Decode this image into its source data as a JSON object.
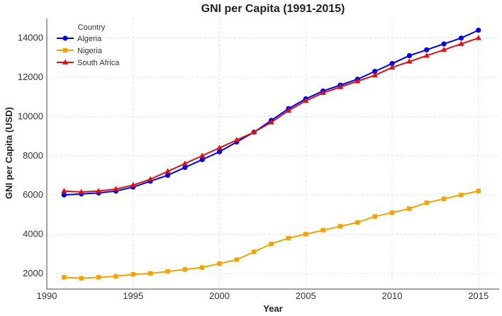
{
  "chart_data": {
    "type": "line",
    "title": "GNI per Capita (1991-2015)",
    "xlabel": "Year",
    "ylabel": "GNI per Capita (USD)",
    "xlim": [
      1990,
      2016.2
    ],
    "ylim": [
      1200,
      15000
    ],
    "xticks": [
      1990,
      1995,
      2000,
      2005,
      2010,
      2015
    ],
    "yticks": [
      2000,
      4000,
      6000,
      8000,
      10000,
      12000,
      14000
    ],
    "grid": true,
    "legend": {
      "title": "Country",
      "position": "top-left"
    },
    "x": [
      1991,
      1992,
      1993,
      1994,
      1995,
      1996,
      1997,
      1998,
      1999,
      2000,
      2001,
      2002,
      2003,
      2004,
      2005,
      2006,
      2007,
      2008,
      2009,
      2010,
      2011,
      2012,
      2013,
      2014,
      2015
    ],
    "series": [
      {
        "name": "Algeria",
        "color": "#0000ee",
        "marker": "circle",
        "values": [
          6000,
          6050,
          6100,
          6200,
          6400,
          6700,
          7000,
          7400,
          7800,
          8200,
          8700,
          9200,
          9800,
          10400,
          10900,
          11300,
          11600,
          11900,
          12300,
          12700,
          13100,
          13400,
          13700,
          14000,
          14400
        ]
      },
      {
        "name": "Nigeria",
        "color": "#f5a300",
        "marker": "square",
        "values": [
          1800,
          1750,
          1800,
          1850,
          1950,
          2000,
          2100,
          2200,
          2300,
          2500,
          2700,
          3100,
          3500,
          3800,
          4000,
          4200,
          4400,
          4600,
          4900,
          5100,
          5300,
          5600,
          5800,
          6000,
          6200
        ]
      },
      {
        "name": "South Africa",
        "color": "#dd1111",
        "marker": "triangle",
        "values": [
          6200,
          6150,
          6200,
          6300,
          6500,
          6800,
          7200,
          7600,
          8000,
          8400,
          8800,
          9200,
          9700,
          10300,
          10800,
          11200,
          11500,
          11800,
          12100,
          12500,
          12800,
          13100,
          13400,
          13700,
          14000
        ]
      }
    ]
  }
}
